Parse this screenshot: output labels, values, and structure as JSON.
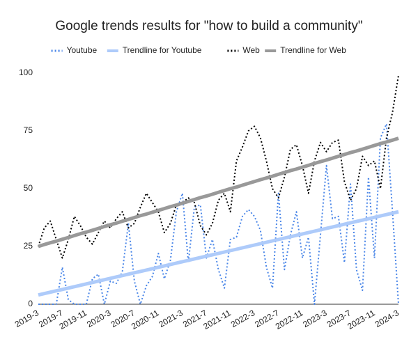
{
  "chart_data": {
    "type": "line",
    "title": "Google trends results for \"how to build a community\"",
    "categories": [
      "2019-3",
      null,
      null,
      null,
      "2019-7",
      null,
      null,
      null,
      "2019-11",
      null,
      null,
      null,
      "2020-3",
      null,
      null,
      null,
      "2020-7",
      null,
      null,
      null,
      "2020-11",
      null,
      null,
      null,
      "2021-3",
      null,
      null,
      null,
      "2021-7",
      null,
      null,
      null,
      "2021-11",
      null,
      null,
      null,
      "2022-3",
      null,
      null,
      null,
      "2022-7",
      null,
      null,
      null,
      "2022-11",
      null,
      null,
      null,
      "2023-3",
      null,
      null,
      null,
      "2023-7",
      null,
      null,
      null,
      "2023-11",
      null,
      null,
      null,
      "2024-3"
    ],
    "ylim": [
      0,
      100
    ],
    "yticks": [
      0,
      25,
      50,
      75,
      100
    ],
    "grid": false,
    "legend": "top",
    "series": [
      {
        "name": "Youtube",
        "color": "#4a86e8",
        "dotted": true,
        "width": 2,
        "values": [
          0,
          0,
          0,
          0,
          16,
          2,
          0,
          0,
          0,
          11,
          13,
          0,
          10,
          9,
          14,
          35,
          10,
          0,
          8,
          12,
          22,
          11,
          19,
          40,
          48,
          18,
          42,
          43,
          20,
          28,
          15,
          7,
          28,
          29,
          38,
          41,
          38,
          32,
          16,
          7,
          48,
          15,
          30,
          40,
          20,
          29,
          0,
          30,
          60,
          37,
          38,
          18,
          52,
          15,
          6,
          55,
          20,
          72,
          78,
          40,
          0
        ]
      },
      {
        "name": "Trendline for Youtube",
        "color": "#aecbfa",
        "dotted": false,
        "width": 5,
        "values": [
          4,
          4.6,
          5.2,
          5.8,
          6.4,
          7,
          7.6,
          8.2,
          8.8,
          9.4,
          10,
          10.6,
          11.2,
          11.8,
          12.4,
          13,
          13.6,
          14.2,
          14.8,
          15.4,
          16,
          16.6,
          17.2,
          17.8,
          18.4,
          19,
          19.6,
          20.2,
          20.8,
          21.4,
          22,
          22.6,
          23.2,
          23.8,
          24.4,
          25,
          25.6,
          26.2,
          26.8,
          27.4,
          28,
          28.6,
          29.2,
          29.8,
          30.4,
          31,
          31.6,
          32.2,
          32.8,
          33.4,
          34,
          34.6,
          35.2,
          35.8,
          36.4,
          37,
          37.6,
          38.2,
          38.8,
          39.4,
          40
        ]
      },
      {
        "name": "Web",
        "color": "#000000",
        "dotted": true,
        "width": 2,
        "values": [
          25,
          33,
          36,
          28,
          20,
          28,
          38,
          34,
          29,
          26,
          31,
          36,
          33,
          37,
          40,
          33,
          35,
          42,
          48,
          44,
          40,
          31,
          35,
          43,
          44,
          46,
          44,
          34,
          30,
          35,
          45,
          48,
          40,
          62,
          68,
          75,
          77,
          72,
          62,
          50,
          46,
          55,
          67,
          69,
          60,
          48,
          62,
          70,
          66,
          70,
          71,
          53,
          45,
          50,
          64,
          60,
          62,
          50,
          72,
          83,
          99
        ]
      },
      {
        "name": "Trendline for Web",
        "color": "#999999",
        "dotted": false,
        "width": 5,
        "values": [
          25,
          25.8,
          26.6,
          27.3,
          28.1,
          28.9,
          29.7,
          30.5,
          31.2,
          32,
          32.8,
          33.6,
          34.4,
          35.1,
          35.9,
          36.7,
          37.5,
          38.3,
          39,
          39.8,
          40.6,
          41.4,
          42.2,
          42.9,
          43.7,
          44.5,
          45.3,
          46.1,
          46.8,
          47.6,
          48.4,
          49.2,
          50,
          50.7,
          51.5,
          52.3,
          53.1,
          53.9,
          54.6,
          55.4,
          56.2,
          57,
          57.8,
          58.5,
          59.3,
          60.1,
          60.9,
          61.7,
          62.4,
          63.2,
          64,
          64.8,
          65.6,
          66.3,
          67.1,
          67.9,
          68.7,
          69.5,
          70.2,
          71,
          71.8
        ]
      }
    ]
  }
}
